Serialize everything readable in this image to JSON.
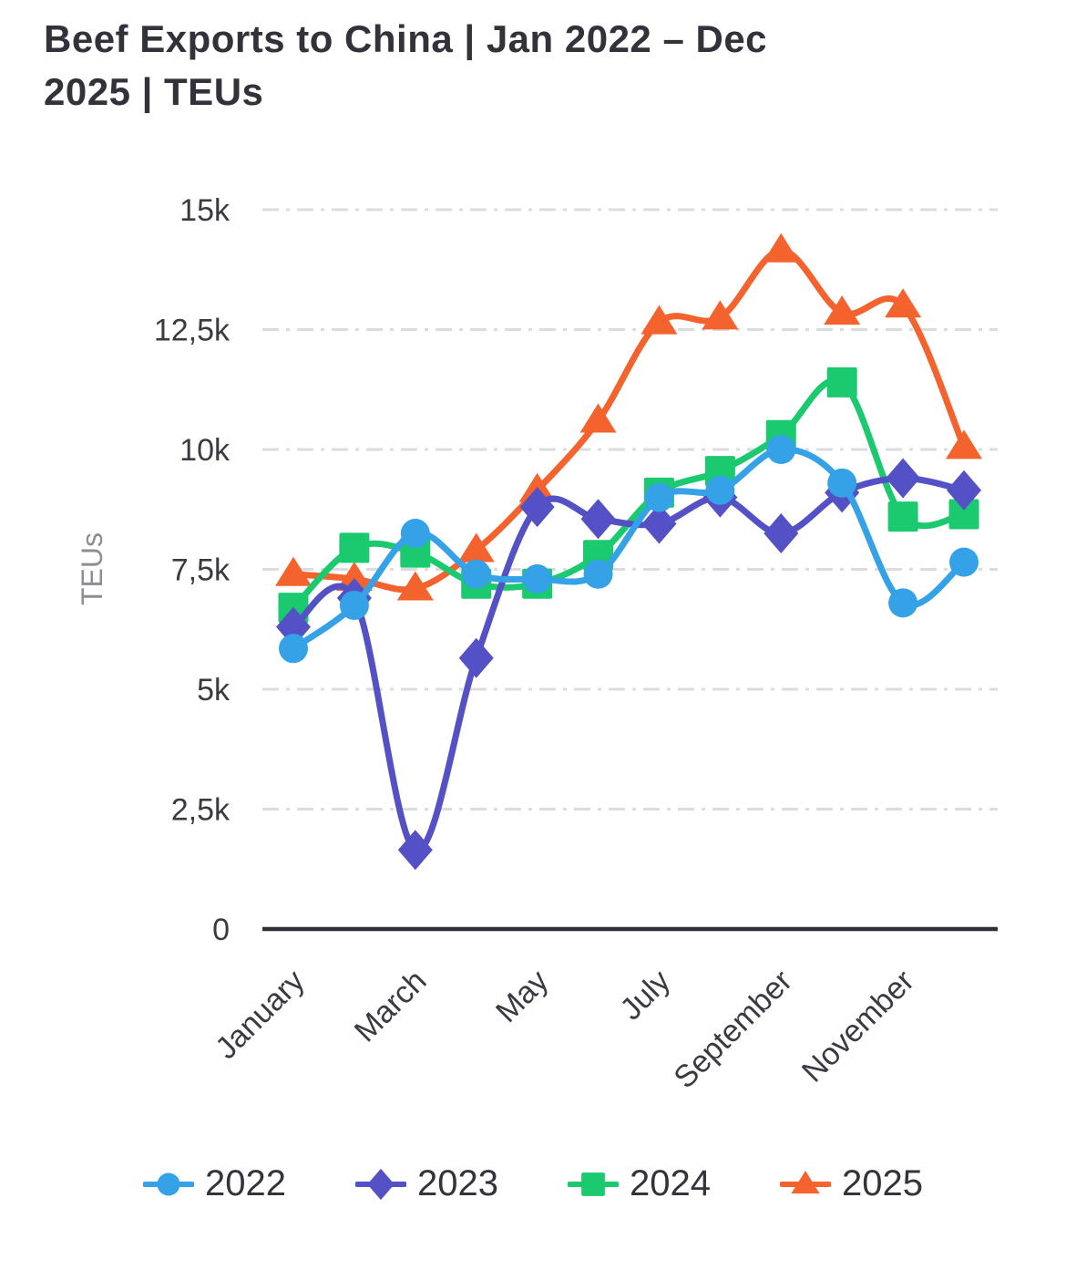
{
  "title_lines": [
    "Beef Exports to China | Jan 2022 – Dec",
    "2025 | TEUs"
  ],
  "y_axis": {
    "label": "TEUs",
    "tick_labels": [
      "0",
      "2,5k",
      "5k",
      "7,5k",
      "10k",
      "12,5k",
      "15k"
    ],
    "tick_values": [
      0,
      2500,
      5000,
      7500,
      10000,
      12500,
      15000
    ]
  },
  "x_axis": {
    "visible_tick_labels": [
      "January",
      "March",
      "May",
      "July",
      "September",
      "November"
    ]
  },
  "colors": {
    "grid": "#DCDCE0",
    "axis_line": "#2E2E36",
    "tick_text": "#3A3A43",
    "muted_text": "#8D8D95",
    "legend_text": "#33333B"
  },
  "chart_data": {
    "type": "line",
    "title": "Beef Exports to China | Jan 2022 – Dec 2025 | TEUs",
    "xlabel": "",
    "ylabel": "TEUs",
    "ylim": [
      0,
      15000
    ],
    "grid": "horizontal dashed",
    "legend_position": "bottom",
    "x": [
      "January",
      "February",
      "March",
      "April",
      "May",
      "June",
      "July",
      "August",
      "September",
      "October",
      "November",
      "December"
    ],
    "series": [
      {
        "name": "2022",
        "color": "#35A2E8",
        "marker": "circle",
        "values": [
          5850,
          6750,
          8250,
          7400,
          7300,
          7400,
          9000,
          9150,
          10000,
          9300,
          6800,
          7650
        ]
      },
      {
        "name": "2023",
        "color": "#5351C5",
        "marker": "diamond",
        "values": [
          6300,
          6900,
          1650,
          5650,
          8800,
          8550,
          8450,
          9000,
          8250,
          9100,
          9400,
          9150
        ]
      },
      {
        "name": "2024",
        "color": "#1BC96E",
        "marker": "square",
        "values": [
          6700,
          7950,
          7850,
          7200,
          7200,
          7800,
          9100,
          9550,
          10300,
          11400,
          8600,
          8650
        ]
      },
      {
        "name": "2025",
        "color": "#F4622D",
        "marker": "triangle",
        "values": [
          7400,
          7300,
          7100,
          7900,
          9150,
          10600,
          12650,
          12750,
          14150,
          12850,
          13000,
          10050
        ]
      }
    ]
  }
}
